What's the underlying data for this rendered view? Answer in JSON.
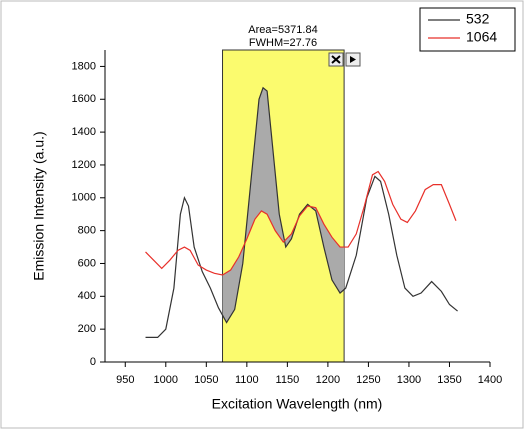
{
  "chart_data": {
    "type": "line",
    "annotations": [
      "Area=5371.84",
      "FWHM=27.76"
    ],
    "highlight_range": [
      1070,
      1220
    ],
    "x_label": "Excitation Wavelength (nm)",
    "y_label": "Emission Intensity (a.u.)",
    "xlim": [
      925,
      1400
    ],
    "xticks": [
      950,
      1000,
      1050,
      1100,
      1150,
      1200,
      1250,
      1300,
      1350,
      1400
    ],
    "ylim": [
      0,
      1900
    ],
    "yticks": [
      0,
      200,
      400,
      600,
      800,
      1000,
      1200,
      1400,
      1600,
      1800
    ],
    "legend": "top-right",
    "series": [
      {
        "name": "532",
        "color": "#333333",
        "x": [
          975,
          990,
          1000,
          1010,
          1018,
          1023,
          1028,
          1035,
          1045,
          1055,
          1065,
          1075,
          1085,
          1095,
          1105,
          1115,
          1120,
          1125,
          1130,
          1140,
          1148,
          1155,
          1165,
          1175,
          1185,
          1195,
          1205,
          1215,
          1222,
          1235,
          1248,
          1258,
          1265,
          1275,
          1285,
          1295,
          1305,
          1315,
          1328,
          1340,
          1350,
          1360
        ],
        "values": [
          150,
          150,
          200,
          450,
          900,
          1000,
          950,
          700,
          550,
          450,
          330,
          240,
          320,
          600,
          1100,
          1600,
          1670,
          1650,
          1400,
          900,
          700,
          750,
          900,
          960,
          920,
          700,
          500,
          420,
          450,
          650,
          1000,
          1130,
          1100,
          900,
          650,
          450,
          400,
          420,
          490,
          430,
          350,
          310
        ]
      },
      {
        "name": "1064",
        "color": "#e8302a",
        "x": [
          975,
          985,
          995,
          1005,
          1015,
          1023,
          1030,
          1040,
          1050,
          1060,
          1070,
          1080,
          1090,
          1100,
          1110,
          1118,
          1125,
          1135,
          1145,
          1155,
          1165,
          1175,
          1185,
          1195,
          1205,
          1215,
          1225,
          1235,
          1245,
          1255,
          1262,
          1270,
          1280,
          1290,
          1298,
          1308,
          1320,
          1330,
          1340,
          1350,
          1358
        ],
        "values": [
          670,
          620,
          570,
          620,
          680,
          700,
          680,
          590,
          560,
          540,
          530,
          560,
          640,
          750,
          870,
          920,
          900,
          800,
          730,
          780,
          890,
          950,
          940,
          840,
          760,
          700,
          700,
          780,
          950,
          1140,
          1160,
          1100,
          960,
          870,
          850,
          920,
          1050,
          1080,
          1080,
          960,
          860
        ]
      }
    ]
  }
}
